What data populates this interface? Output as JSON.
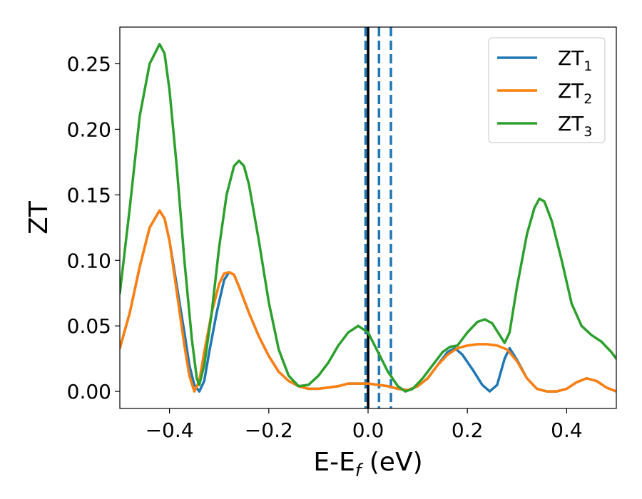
{
  "chart_data": {
    "type": "line",
    "xlabel": "E-E",
    "xlabel_sub": "f",
    "xlabel_unit": " (eV)",
    "ylabel": "ZT",
    "xlim": [
      -0.5,
      0.5
    ],
    "ylim": [
      -0.013,
      0.278
    ],
    "xticks": [
      -0.4,
      -0.2,
      0.0,
      0.2,
      0.4
    ],
    "xtick_labels": [
      "−0.4",
      "−0.2",
      "0.0",
      "0.2",
      "0.4"
    ],
    "yticks": [
      0.0,
      0.05,
      0.1,
      0.15,
      0.2,
      0.25
    ],
    "ytick_labels": [
      "0.00",
      "0.05",
      "0.10",
      "0.15",
      "0.20",
      "0.25"
    ],
    "grid": false,
    "legend_position": "top-right",
    "vlines": [
      {
        "x": 0.0,
        "style": "solid",
        "color": "#000000"
      },
      {
        "x": -0.005,
        "style": "dashed",
        "color": "#1f77b4"
      },
      {
        "x": 0.022,
        "style": "dashed",
        "color": "#1f77b4"
      },
      {
        "x": 0.046,
        "style": "dashed",
        "color": "#1f77b4"
      }
    ],
    "series": [
      {
        "name": "ZT",
        "subscript": "1",
        "color": "#1f77b4",
        "points": [
          [
            -0.5,
            0.033
          ],
          [
            -0.48,
            0.06
          ],
          [
            -0.46,
            0.095
          ],
          [
            -0.44,
            0.125
          ],
          [
            -0.42,
            0.138
          ],
          [
            -0.41,
            0.132
          ],
          [
            -0.4,
            0.115
          ],
          [
            -0.385,
            0.08
          ],
          [
            -0.37,
            0.045
          ],
          [
            -0.36,
            0.02
          ],
          [
            -0.35,
            0.005
          ],
          [
            -0.34,
            0.0
          ],
          [
            -0.33,
            0.008
          ],
          [
            -0.32,
            0.03
          ],
          [
            -0.305,
            0.06
          ],
          [
            -0.29,
            0.085
          ],
          [
            -0.28,
            0.091
          ],
          [
            -0.27,
            0.089
          ],
          [
            -0.26,
            0.08
          ],
          [
            -0.24,
            0.06
          ],
          [
            -0.22,
            0.042
          ],
          [
            -0.2,
            0.027
          ],
          [
            -0.18,
            0.015
          ],
          [
            -0.16,
            0.008
          ],
          [
            -0.14,
            0.004
          ],
          [
            -0.12,
            0.002
          ],
          [
            -0.1,
            0.002
          ],
          [
            -0.08,
            0.003
          ],
          [
            -0.06,
            0.004
          ],
          [
            -0.04,
            0.006
          ],
          [
            -0.02,
            0.006
          ],
          [
            0.0,
            0.006
          ],
          [
            0.02,
            0.005
          ],
          [
            0.04,
            0.004
          ],
          [
            0.06,
            0.002
          ],
          [
            0.08,
            0.001
          ],
          [
            0.1,
            0.004
          ],
          [
            0.12,
            0.01
          ],
          [
            0.14,
            0.02
          ],
          [
            0.16,
            0.03
          ],
          [
            0.175,
            0.033
          ],
          [
            0.19,
            0.028
          ],
          [
            0.21,
            0.017
          ],
          [
            0.23,
            0.005
          ],
          [
            0.245,
            0.0
          ],
          [
            0.26,
            0.005
          ],
          [
            0.275,
            0.025
          ],
          [
            0.285,
            0.033
          ],
          [
            0.3,
            0.024
          ],
          [
            0.32,
            0.01
          ],
          [
            0.34,
            0.002
          ],
          [
            0.36,
            0.0
          ],
          [
            0.38,
            0.0
          ],
          [
            0.4,
            0.002
          ],
          [
            0.42,
            0.007
          ],
          [
            0.44,
            0.01
          ],
          [
            0.46,
            0.008
          ],
          [
            0.48,
            0.003
          ],
          [
            0.5,
            0.0
          ]
        ]
      },
      {
        "name": "ZT",
        "subscript": "2",
        "color": "#ff7f0e",
        "points": [
          [
            -0.5,
            0.033
          ],
          [
            -0.48,
            0.06
          ],
          [
            -0.46,
            0.095
          ],
          [
            -0.44,
            0.125
          ],
          [
            -0.42,
            0.138
          ],
          [
            -0.41,
            0.132
          ],
          [
            -0.4,
            0.115
          ],
          [
            -0.385,
            0.075
          ],
          [
            -0.37,
            0.035
          ],
          [
            -0.36,
            0.012
          ],
          [
            -0.35,
            0.0
          ],
          [
            -0.34,
            0.008
          ],
          [
            -0.33,
            0.03
          ],
          [
            -0.315,
            0.06
          ],
          [
            -0.3,
            0.082
          ],
          [
            -0.29,
            0.09
          ],
          [
            -0.28,
            0.091
          ],
          [
            -0.27,
            0.089
          ],
          [
            -0.26,
            0.08
          ],
          [
            -0.24,
            0.06
          ],
          [
            -0.22,
            0.042
          ],
          [
            -0.2,
            0.027
          ],
          [
            -0.18,
            0.015
          ],
          [
            -0.16,
            0.008
          ],
          [
            -0.14,
            0.004
          ],
          [
            -0.12,
            0.002
          ],
          [
            -0.1,
            0.002
          ],
          [
            -0.08,
            0.003
          ],
          [
            -0.06,
            0.004
          ],
          [
            -0.04,
            0.006
          ],
          [
            -0.02,
            0.006
          ],
          [
            0.0,
            0.006
          ],
          [
            0.02,
            0.005
          ],
          [
            0.04,
            0.004
          ],
          [
            0.06,
            0.002
          ],
          [
            0.08,
            0.001
          ],
          [
            0.1,
            0.004
          ],
          [
            0.12,
            0.01
          ],
          [
            0.14,
            0.02
          ],
          [
            0.16,
            0.028
          ],
          [
            0.18,
            0.033
          ],
          [
            0.2,
            0.035
          ],
          [
            0.22,
            0.036
          ],
          [
            0.24,
            0.036
          ],
          [
            0.26,
            0.035
          ],
          [
            0.28,
            0.032
          ],
          [
            0.3,
            0.023
          ],
          [
            0.32,
            0.01
          ],
          [
            0.34,
            0.002
          ],
          [
            0.36,
            0.0
          ],
          [
            0.38,
            0.0
          ],
          [
            0.4,
            0.002
          ],
          [
            0.42,
            0.007
          ],
          [
            0.44,
            0.01
          ],
          [
            0.46,
            0.008
          ],
          [
            0.48,
            0.003
          ],
          [
            0.5,
            0.0
          ]
        ]
      },
      {
        "name": "ZT",
        "subscript": "3",
        "color": "#2ca02c",
        "points": [
          [
            -0.5,
            0.075
          ],
          [
            -0.48,
            0.14
          ],
          [
            -0.46,
            0.21
          ],
          [
            -0.44,
            0.25
          ],
          [
            -0.42,
            0.265
          ],
          [
            -0.41,
            0.258
          ],
          [
            -0.4,
            0.23
          ],
          [
            -0.385,
            0.17
          ],
          [
            -0.37,
            0.1
          ],
          [
            -0.355,
            0.04
          ],
          [
            -0.345,
            0.01
          ],
          [
            -0.34,
            0.005
          ],
          [
            -0.33,
            0.02
          ],
          [
            -0.315,
            0.06
          ],
          [
            -0.3,
            0.11
          ],
          [
            -0.285,
            0.15
          ],
          [
            -0.27,
            0.172
          ],
          [
            -0.26,
            0.176
          ],
          [
            -0.25,
            0.172
          ],
          [
            -0.24,
            0.158
          ],
          [
            -0.22,
            0.115
          ],
          [
            -0.2,
            0.068
          ],
          [
            -0.18,
            0.032
          ],
          [
            -0.16,
            0.012
          ],
          [
            -0.14,
            0.004
          ],
          [
            -0.12,
            0.005
          ],
          [
            -0.1,
            0.012
          ],
          [
            -0.08,
            0.022
          ],
          [
            -0.06,
            0.035
          ],
          [
            -0.04,
            0.045
          ],
          [
            -0.02,
            0.05
          ],
          [
            0.0,
            0.045
          ],
          [
            0.02,
            0.03
          ],
          [
            0.04,
            0.015
          ],
          [
            0.06,
            0.004
          ],
          [
            0.075,
            0.0
          ],
          [
            0.09,
            0.002
          ],
          [
            0.11,
            0.01
          ],
          [
            0.13,
            0.02
          ],
          [
            0.15,
            0.03
          ],
          [
            0.165,
            0.034
          ],
          [
            0.18,
            0.035
          ],
          [
            0.2,
            0.045
          ],
          [
            0.22,
            0.053
          ],
          [
            0.235,
            0.055
          ],
          [
            0.25,
            0.052
          ],
          [
            0.265,
            0.043
          ],
          [
            0.275,
            0.037
          ],
          [
            0.285,
            0.045
          ],
          [
            0.3,
            0.08
          ],
          [
            0.32,
            0.12
          ],
          [
            0.335,
            0.14
          ],
          [
            0.345,
            0.147
          ],
          [
            0.355,
            0.145
          ],
          [
            0.37,
            0.13
          ],
          [
            0.39,
            0.1
          ],
          [
            0.41,
            0.067
          ],
          [
            0.43,
            0.05
          ],
          [
            0.45,
            0.043
          ],
          [
            0.47,
            0.038
          ],
          [
            0.49,
            0.03
          ],
          [
            0.5,
            0.025
          ]
        ]
      }
    ]
  }
}
